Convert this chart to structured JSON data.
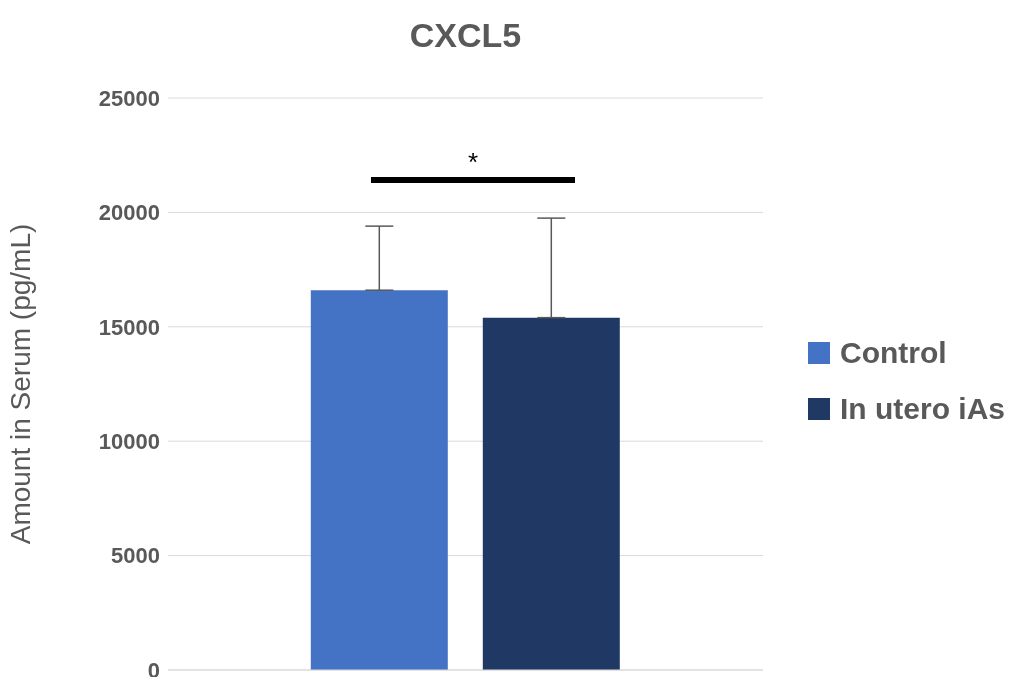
{
  "chart_data": {
    "type": "bar",
    "title": "CXCL5",
    "ylabel": "Amount in Serum (pg/mL)",
    "categories": [
      null
    ],
    "series": [
      {
        "name": "Control",
        "color": "#4472c4",
        "values": [
          16600
        ],
        "errors": [
          [
            16600,
            19400
          ]
        ]
      },
      {
        "name": "In utero iAs",
        "color": "#203864",
        "values": [
          15400
        ],
        "errors": [
          [
            15400,
            19750
          ]
        ]
      }
    ],
    "ylim": [
      0,
      25000
    ],
    "yticks": [
      0,
      5000,
      10000,
      15000,
      20000,
      25000
    ],
    "grid": "y",
    "legend": "right",
    "annotations": [
      "*"
    ]
  }
}
